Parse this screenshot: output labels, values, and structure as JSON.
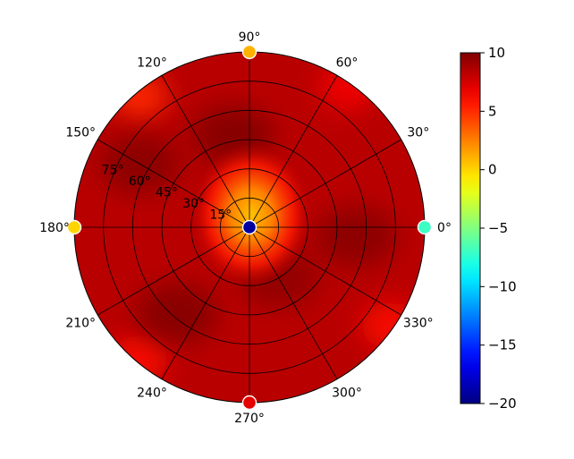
{
  "chart_data": {
    "type": "heatmap",
    "projection": "polar",
    "title": "",
    "angle_ticks": [
      "0°",
      "30°",
      "60°",
      "90°",
      "120°",
      "150°",
      "180°",
      "210°",
      "240°",
      "270°",
      "300°",
      "330°"
    ],
    "angle_tick_values_deg": [
      0,
      30,
      60,
      90,
      120,
      150,
      180,
      210,
      240,
      270,
      300,
      330
    ],
    "radial_ticks": [
      "15°",
      "30°",
      "45°",
      "60°",
      "75°"
    ],
    "radial_tick_values_deg": [
      15,
      30,
      45,
      60,
      75
    ],
    "radial_range_deg": [
      0,
      90
    ],
    "grid": true,
    "colorbar": {
      "colormap": "jet",
      "range": [
        -20,
        10
      ],
      "ticks": [
        10,
        5,
        0,
        -5,
        -10,
        -15,
        -20
      ],
      "tick_labels": [
        "10",
        "5",
        "0",
        "−5",
        "−10",
        "−15",
        "−20"
      ]
    },
    "value_field": {
      "background": 8.3,
      "center": {
        "value": 0.5,
        "halo_radius_deg": 30
      },
      "hot_spots": [
        {
          "angle_deg": 100,
          "radius_deg": 48,
          "value": 10
        },
        {
          "angle_deg": 150,
          "radius_deg": 65,
          "value": 9.8
        },
        {
          "angle_deg": 230,
          "radius_deg": 58,
          "value": 10
        },
        {
          "angle_deg": 300,
          "radius_deg": 30,
          "value": 9.6
        },
        {
          "angle_deg": 355,
          "radius_deg": 55,
          "value": 9.8
        }
      ],
      "cool_spots": [
        {
          "angle_deg": 130,
          "radius_deg": 88,
          "value": 5
        },
        {
          "angle_deg": 55,
          "radius_deg": 88,
          "value": 6.5
        },
        {
          "angle_deg": 325,
          "radius_deg": 88,
          "value": 6
        },
        {
          "angle_deg": 230,
          "radius_deg": 88,
          "value": 6
        }
      ]
    },
    "markers": [
      {
        "angle_deg": 0,
        "radius_deg": 0,
        "value": -19
      },
      {
        "angle_deg": 0,
        "radius_deg": 90,
        "value": -7
      },
      {
        "angle_deg": 90,
        "radius_deg": 90,
        "value": 1
      },
      {
        "angle_deg": 180,
        "radius_deg": 90,
        "value": 0
      },
      {
        "angle_deg": 270,
        "radius_deg": 90,
        "value": 7
      }
    ]
  }
}
